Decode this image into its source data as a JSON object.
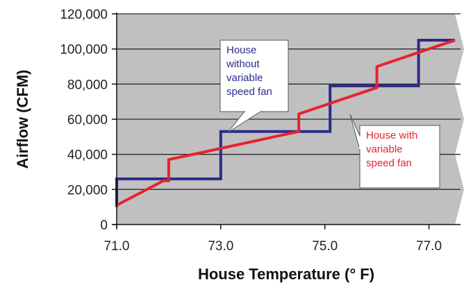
{
  "chart_data": {
    "type": "line",
    "title": "",
    "xlabel": "House Temperature (° F)",
    "ylabel": "Airflow (CFM)",
    "xlim": [
      71.0,
      77.5
    ],
    "ylim": [
      0,
      120000
    ],
    "x_ticks": [
      {
        "value": 71.0,
        "label": "71.0"
      },
      {
        "value": 73.0,
        "label": "73.0"
      },
      {
        "value": 75.0,
        "label": "75.0"
      },
      {
        "value": 77.0,
        "label": "77.0"
      }
    ],
    "y_ticks": [
      {
        "value": 0,
        "label": "0"
      },
      {
        "value": 20000,
        "label": "20,000"
      },
      {
        "value": 40000,
        "label": "40,000"
      },
      {
        "value": 60000,
        "label": "60,000"
      },
      {
        "value": 80000,
        "label": "80,000"
      },
      {
        "value": 100000,
        "label": "100,000"
      },
      {
        "value": 120000,
        "label": "120,000"
      }
    ],
    "grid": true,
    "plot_background": "#c0c0c0",
    "series": [
      {
        "color": "#2b2b8c",
        "points": [
          [
            71.0,
            10000
          ],
          [
            71.0,
            26000
          ],
          [
            73.0,
            26000
          ],
          [
            73.0,
            53000
          ],
          [
            75.1,
            53000
          ],
          [
            75.1,
            79000
          ],
          [
            76.8,
            79000
          ],
          [
            76.8,
            105000
          ],
          [
            77.5,
            105000
          ]
        ]
      },
      {
        "color": "#e8222a",
        "points": [
          [
            71.0,
            11000
          ],
          [
            71.9,
            25000
          ],
          [
            72.0,
            25000
          ],
          [
            72.0,
            37000
          ],
          [
            74.5,
            53000
          ],
          [
            74.5,
            63000
          ],
          [
            76.0,
            78000
          ],
          [
            76.0,
            90000
          ],
          [
            77.5,
            105000
          ]
        ]
      }
    ],
    "annotations": [
      {
        "lines": [
          "House",
          "without",
          "variable",
          "speed fan"
        ],
        "color": "#2b2b8c",
        "points_to_series": 0
      },
      {
        "lines": [
          "House with",
          "variable",
          "speed fan"
        ],
        "color": "#e8222a",
        "points_to_series": 1
      }
    ]
  }
}
